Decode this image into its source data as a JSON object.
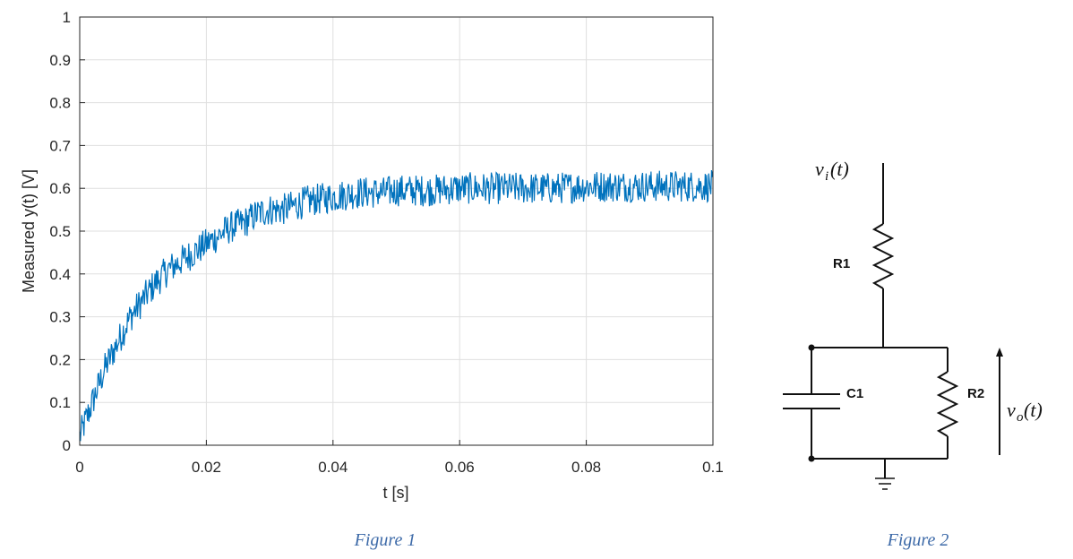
{
  "chart_data": {
    "type": "line",
    "title": "",
    "xlabel": "t [s]",
    "ylabel": "Measured y(t) [V]",
    "xlim": [
      0,
      0.1
    ],
    "ylim": [
      0,
      1
    ],
    "grid": true,
    "xticks": [
      0,
      0.02,
      0.04,
      0.06,
      0.08,
      0.1
    ],
    "xtick_labels": [
      "0",
      "0.02",
      "0.04",
      "0.06",
      "0.08",
      "0.1"
    ],
    "yticks": [
      0,
      0.1,
      0.2,
      0.3,
      0.4,
      0.5,
      0.6,
      0.7,
      0.8,
      0.9,
      1
    ],
    "ytick_labels": [
      "0",
      "0.1",
      "0.2",
      "0.3",
      "0.4",
      "0.5",
      "0.6",
      "0.7",
      "0.8",
      "0.9",
      "1"
    ],
    "series_color": "#0072bd",
    "series": [
      {
        "x": [
          0,
          0.002,
          0.004,
          0.006,
          0.008,
          0.01,
          0.012,
          0.014,
          0.016,
          0.018,
          0.02,
          0.022,
          0.024,
          0.026,
          0.028,
          0.03,
          0.032,
          0.034,
          0.036,
          0.038,
          0.04,
          0.042,
          0.044,
          0.046,
          0.048,
          0.05,
          0.055,
          0.06,
          0.065,
          0.07,
          0.075,
          0.08,
          0.085,
          0.09,
          0.095,
          0.1
        ],
        "y": [
          0.02,
          0.1,
          0.18,
          0.24,
          0.3,
          0.34,
          0.38,
          0.41,
          0.43,
          0.45,
          0.47,
          0.49,
          0.51,
          0.52,
          0.54,
          0.55,
          0.55,
          0.56,
          0.57,
          0.575,
          0.58,
          0.585,
          0.59,
          0.59,
          0.59,
          0.595,
          0.595,
          0.6,
          0.6,
          0.6,
          0.6,
          0.605,
          0.605,
          0.605,
          0.605,
          0.605
        ]
      }
    ]
  },
  "figure1_caption": "Figure 1",
  "figure2_caption": "Figure 2",
  "circuit": {
    "input_label": "v",
    "input_sub": "i",
    "input_suffix": "(t)",
    "output_label": "v",
    "output_sub": "o",
    "output_suffix": "(t)",
    "r1_label": "R1",
    "r2_label": "R2",
    "c1_label": "C1"
  }
}
